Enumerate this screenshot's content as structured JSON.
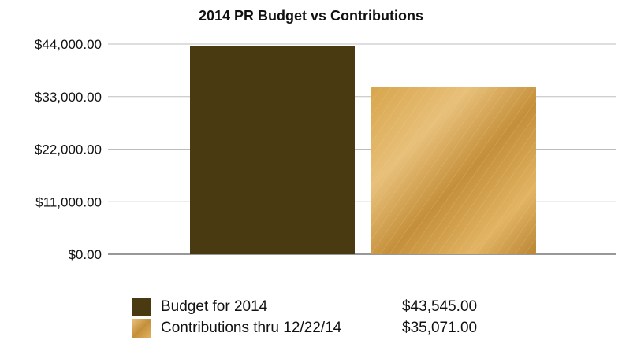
{
  "chart_data": {
    "type": "bar",
    "title": "2014 PR Budget vs Contributions",
    "xlabel": "",
    "ylabel": "",
    "ylim": [
      0,
      44000
    ],
    "y_ticks": [
      "$0.00",
      "$11,000.00",
      "$22,000.00",
      "$33,000.00",
      "$44,000.00"
    ],
    "y_tick_values": [
      0,
      11000,
      22000,
      33000,
      44000
    ],
    "grid": true,
    "legend_position": "bottom",
    "series": [
      {
        "name": "Budget for 2014",
        "value_label": "$43,545.00",
        "value": 43545,
        "color": "#4a3a12"
      },
      {
        "name": "Contributions thru 12/22/14",
        "value_label": "$35,071.00",
        "value": 35071,
        "color": "#c9973e"
      }
    ]
  }
}
